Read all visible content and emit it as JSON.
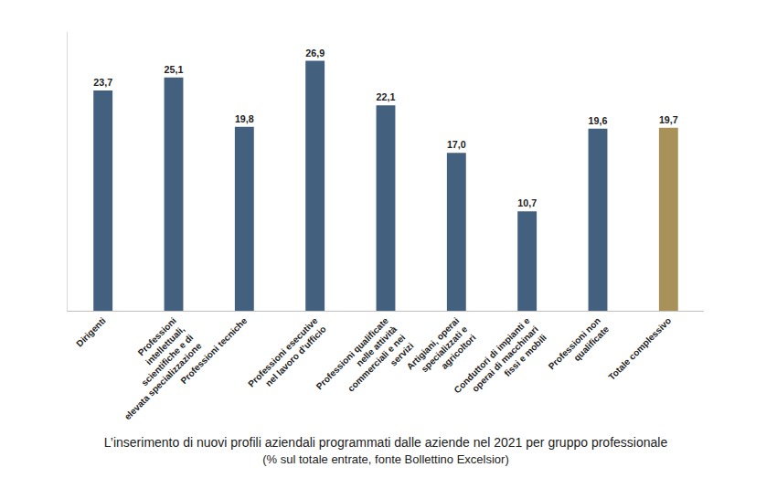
{
  "chart_data": {
    "type": "bar",
    "title": "L’inserimento di nuovi profili aziendali programmati dalle aziende nel 2021 per gruppo professionale",
    "subtitle": "(% sul totale entrate, fonte Bollettino Excelsior)",
    "categories": [
      "Dirigenti",
      "Professioni intellettuali, scientifiche e di elevata specializzazione",
      "Professioni tecniche",
      "Professioni esecutive nel lavoro d’ufficio",
      "Professioni qualificate nelle attività commerciali e nei servizi",
      "Artigiani, operai specializzati e agricoltori",
      "Conduttori di impianti e operai di macchinari fissi e mobili",
      "Professioni non qualificate",
      "Totale complessivo"
    ],
    "values": [
      23.7,
      25.1,
      19.8,
      26.9,
      22.1,
      17.0,
      10.7,
      19.6,
      19.7
    ],
    "value_labels": [
      "23,7",
      "25,1",
      "19,8",
      "26,9",
      "22,1",
      "17,0",
      "10,7",
      "19,6",
      "19,7"
    ],
    "colors": [
      "#43617f",
      "#43617f",
      "#43617f",
      "#43617f",
      "#43617f",
      "#43617f",
      "#43617f",
      "#43617f",
      "#a89259"
    ],
    "ylim": [
      0,
      30
    ],
    "grid": false,
    "data_labels": true,
    "tick_labels": "x"
  }
}
